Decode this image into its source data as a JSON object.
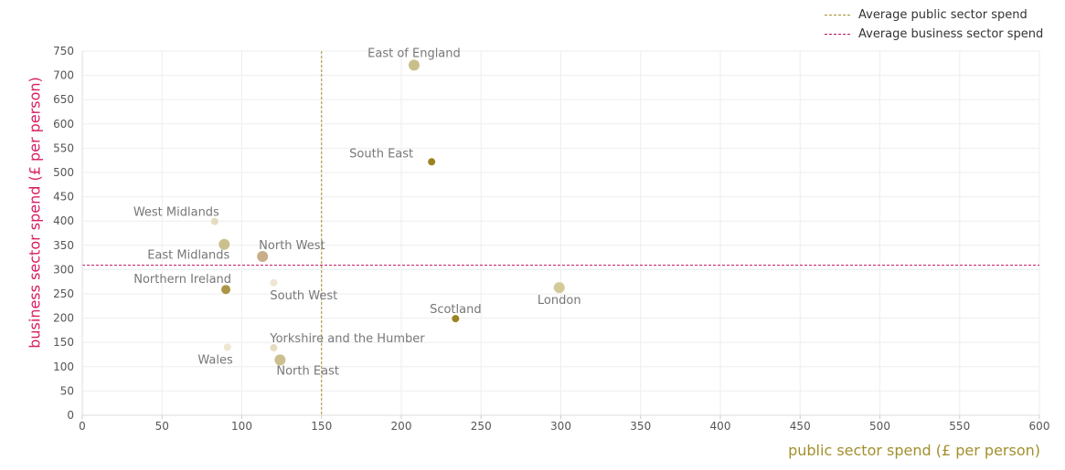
{
  "colors": {
    "public_avg_line": "#a38f2d",
    "business_avg_line": "#c0115e",
    "x_title": "#a38f2d",
    "y_title": "#d81b60",
    "grid": "#eeeeee",
    "tick_text": "#555555",
    "point_label": "#777777"
  },
  "legend": {
    "public_avg_label": "Average public sector spend",
    "business_avg_label": "Average business sector spend"
  },
  "chart_data": {
    "type": "scatter",
    "xlabel": "public sector spend (£ per person)",
    "ylabel": "business sector spend (£ per person)",
    "xlim": [
      0,
      600
    ],
    "ylim": [
      0,
      750
    ],
    "x_ticks": [
      0,
      50,
      100,
      150,
      200,
      250,
      300,
      350,
      400,
      450,
      500,
      550,
      600
    ],
    "y_ticks": [
      0,
      50,
      100,
      150,
      200,
      250,
      300,
      350,
      400,
      450,
      500,
      550,
      600,
      650,
      700,
      750
    ],
    "grid": true,
    "legend_position": "top-right",
    "average_public_sector_spend": 150,
    "average_business_sector_spend": 309,
    "points": [
      {
        "label": "East of England",
        "x": 208,
        "y": 721,
        "color": "#c9bf8a"
      },
      {
        "label": "South East",
        "x": 219,
        "y": 522,
        "color": "#9a8420"
      },
      {
        "label": "West Midlands",
        "x": 83,
        "y": 399,
        "color": "#e6dcc0"
      },
      {
        "label": "East Midlands",
        "x": 89,
        "y": 352,
        "color": "#cbbf8e"
      },
      {
        "label": "North West",
        "x": 113,
        "y": 327,
        "color": "#c9ae8a"
      },
      {
        "label": "Northern Ireland",
        "x": 90,
        "y": 259,
        "color": "#ab9545"
      },
      {
        "label": "South West",
        "x": 120,
        "y": 273,
        "color": "#eee6d2"
      },
      {
        "label": "London",
        "x": 299,
        "y": 263,
        "color": "#d4ca98"
      },
      {
        "label": "Scotland",
        "x": 234,
        "y": 199,
        "color": "#9a8420"
      },
      {
        "label": "Yorkshire and the Humber",
        "x": 120,
        "y": 139,
        "color": "#e6dcc0"
      },
      {
        "label": "Wales",
        "x": 91,
        "y": 140,
        "color": "#eee6d2"
      },
      {
        "label": "North East",
        "x": 124,
        "y": 114,
        "color": "#cbbf8e"
      }
    ]
  }
}
